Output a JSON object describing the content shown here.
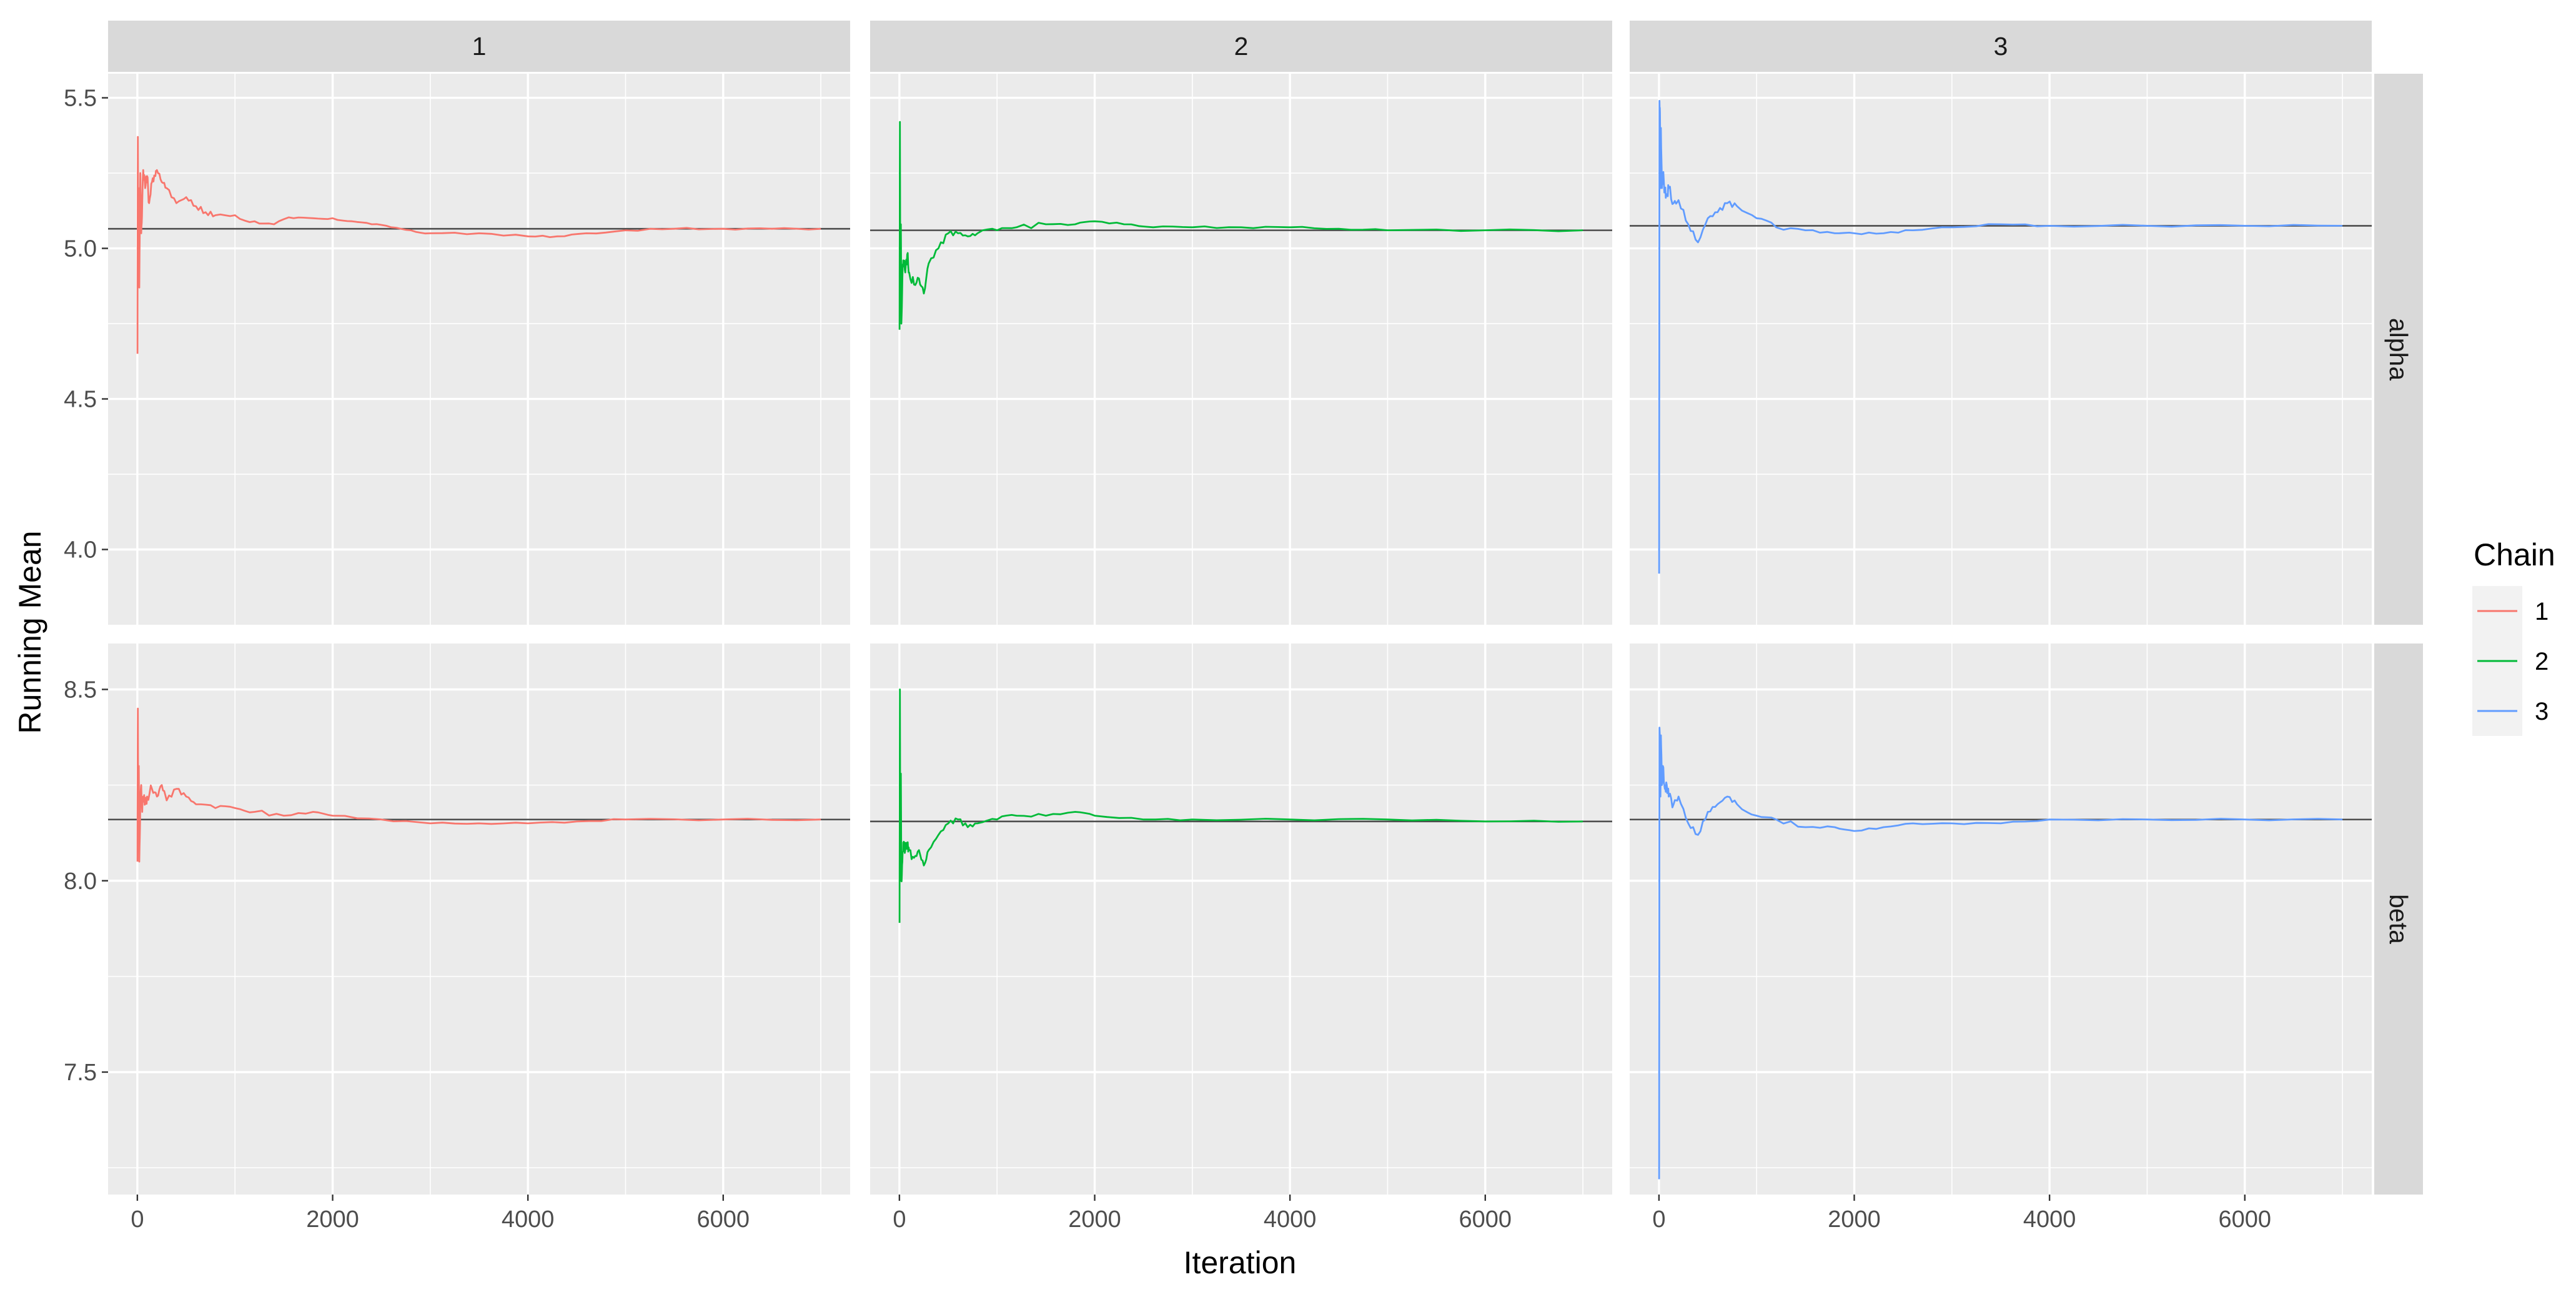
{
  "chart_data": {
    "type": "line",
    "title": "",
    "xlabel": "Iteration",
    "ylabel": "Running Mean",
    "legend": {
      "title": "Chain",
      "position": "right",
      "entries": [
        "1",
        "2",
        "3"
      ]
    },
    "colors": {
      "1": "#F8766D",
      "2": "#00BA38",
      "3": "#619CFF",
      "reference": "#4d4d4d",
      "panel": "#EBEBEB",
      "strip": "#D9D9D9",
      "grid": "#ffffff"
    },
    "columns": [
      "1",
      "2",
      "3"
    ],
    "rows": [
      "alpha",
      "beta"
    ],
    "xlim": [
      -300,
      7300
    ],
    "x_ticks": [
      0,
      2000,
      4000,
      6000
    ],
    "x_tick_labels": [
      "0",
      "2000",
      "4000",
      "6000"
    ],
    "grid": true,
    "y_axes": {
      "alpha": {
        "ylim": [
          3.75,
          5.58
        ],
        "ticks": [
          4.0,
          4.5,
          5.0,
          5.5
        ],
        "tick_labels": [
          "4.0",
          "4.5",
          "5.0",
          "5.5"
        ]
      },
      "beta": {
        "ylim": [
          7.18,
          8.62
        ],
        "ticks": [
          7.5,
          8.0,
          8.5
        ],
        "tick_labels": [
          "7.5",
          "8.0",
          "8.5"
        ]
      }
    },
    "series": [
      {
        "name": "1",
        "row": "alpha",
        "column": "1",
        "reference": 5.065,
        "x": [
          1,
          5,
          10,
          15,
          20,
          30,
          40,
          50,
          60,
          80,
          100,
          120,
          150,
          180,
          200,
          250,
          300,
          400,
          500,
          600,
          700,
          800,
          1000,
          1200,
          1400,
          1600,
          1800,
          2000,
          2200,
          2400,
          2600,
          2800,
          3000,
          3500,
          4000,
          4300,
          4600,
          5000,
          5500,
          6000,
          6500,
          7000
        ],
        "y": [
          4.65,
          5.37,
          4.9,
          5.2,
          4.87,
          5.25,
          5.05,
          5.15,
          5.26,
          5.2,
          5.24,
          5.15,
          5.22,
          5.24,
          5.26,
          5.22,
          5.2,
          5.15,
          5.17,
          5.14,
          5.12,
          5.11,
          5.11,
          5.09,
          5.08,
          5.1,
          5.1,
          5.1,
          5.09,
          5.08,
          5.07,
          5.06,
          5.05,
          5.05,
          5.04,
          5.04,
          5.05,
          5.06,
          5.065,
          5.065,
          5.065,
          5.065
        ]
      },
      {
        "name": "2",
        "row": "alpha",
        "column": "2",
        "reference": 5.06,
        "x": [
          1,
          5,
          10,
          15,
          20,
          30,
          40,
          60,
          80,
          100,
          150,
          200,
          250,
          300,
          400,
          500,
          600,
          700,
          800,
          1000,
          1200,
          1500,
          1800,
          2000,
          2300,
          2600,
          3000,
          3500,
          4000,
          4500,
          5000,
          6000,
          7000
        ],
        "y": [
          4.73,
          5.42,
          4.8,
          5.08,
          4.75,
          4.9,
          4.96,
          4.92,
          4.98,
          4.92,
          4.88,
          4.9,
          4.85,
          4.95,
          5.0,
          5.05,
          5.05,
          5.04,
          5.05,
          5.06,
          5.07,
          5.08,
          5.08,
          5.09,
          5.08,
          5.07,
          5.07,
          5.07,
          5.07,
          5.065,
          5.06,
          5.06,
          5.06
        ]
      },
      {
        "name": "3",
        "row": "alpha",
        "column": "3",
        "reference": 5.075,
        "x": [
          1,
          5,
          10,
          15,
          20,
          30,
          40,
          60,
          80,
          100,
          150,
          200,
          300,
          400,
          500,
          600,
          700,
          800,
          1000,
          1200,
          1500,
          1800,
          2000,
          2300,
          2600,
          3000,
          3500,
          4000,
          5000,
          6000,
          7000
        ],
        "y": [
          3.92,
          5.49,
          5.45,
          5.2,
          5.4,
          5.2,
          5.25,
          5.19,
          5.18,
          5.2,
          5.15,
          5.16,
          5.08,
          5.02,
          5.1,
          5.12,
          5.15,
          5.14,
          5.1,
          5.07,
          5.06,
          5.05,
          5.05,
          5.05,
          5.06,
          5.07,
          5.08,
          5.075,
          5.075,
          5.075,
          5.075
        ]
      },
      {
        "name": "1",
        "row": "beta",
        "column": "1",
        "reference": 8.16,
        "x": [
          1,
          5,
          10,
          15,
          20,
          30,
          40,
          50,
          60,
          80,
          100,
          150,
          200,
          250,
          300,
          400,
          500,
          600,
          800,
          1000,
          1200,
          1500,
          1800,
          2000,
          2500,
          3000,
          3500,
          4000,
          4500,
          5000,
          6000,
          7000
        ],
        "y": [
          8.05,
          8.45,
          8.1,
          8.3,
          8.05,
          8.2,
          8.25,
          8.18,
          8.22,
          8.2,
          8.22,
          8.24,
          8.22,
          8.25,
          8.21,
          8.24,
          8.22,
          8.2,
          8.19,
          8.19,
          8.18,
          8.17,
          8.18,
          8.17,
          8.16,
          8.15,
          8.15,
          8.15,
          8.155,
          8.16,
          8.16,
          8.16
        ]
      },
      {
        "name": "2",
        "row": "beta",
        "column": "2",
        "reference": 8.155,
        "x": [
          1,
          5,
          10,
          15,
          20,
          30,
          40,
          60,
          80,
          100,
          150,
          200,
          250,
          300,
          400,
          500,
          600,
          700,
          800,
          1000,
          1200,
          1500,
          1800,
          2000,
          2500,
          3000,
          4000,
          5000,
          6000,
          7000
        ],
        "y": [
          7.89,
          8.5,
          8.0,
          8.28,
          8.0,
          8.05,
          8.1,
          8.08,
          8.1,
          8.08,
          8.06,
          8.08,
          8.04,
          8.08,
          8.12,
          8.15,
          8.16,
          8.14,
          8.15,
          8.16,
          8.17,
          8.17,
          8.18,
          8.17,
          8.16,
          8.16,
          8.16,
          8.16,
          8.155,
          8.155
        ]
      },
      {
        "name": "3",
        "row": "beta",
        "column": "3",
        "reference": 8.16,
        "x": [
          1,
          5,
          10,
          15,
          20,
          30,
          40,
          60,
          80,
          100,
          150,
          200,
          300,
          400,
          500,
          600,
          700,
          800,
          1000,
          1200,
          1500,
          1800,
          2000,
          2300,
          2600,
          3000,
          3500,
          4000,
          5000,
          6000,
          7000
        ],
        "y": [
          7.22,
          8.4,
          8.35,
          8.22,
          8.38,
          8.25,
          8.3,
          8.24,
          8.25,
          8.22,
          8.2,
          8.22,
          8.15,
          8.12,
          8.18,
          8.2,
          8.22,
          8.2,
          8.17,
          8.16,
          8.14,
          8.14,
          8.13,
          8.14,
          8.15,
          8.15,
          8.15,
          8.16,
          8.16,
          8.16,
          8.16
        ]
      }
    ]
  }
}
